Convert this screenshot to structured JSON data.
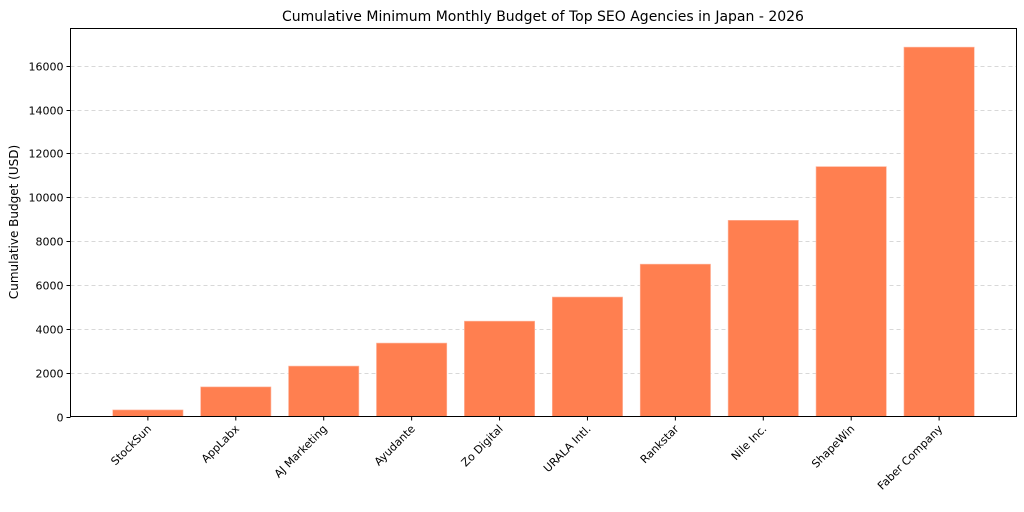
{
  "chart_data": {
    "type": "bar",
    "title": "Cumulative Minimum Monthly Budget of Top SEO Agencies in Japan - 2026",
    "xlabel": "",
    "ylabel": "Cumulative Budget (USD)",
    "categories": [
      "StockSun",
      "AppLabx",
      "AJ Marketing",
      "Ayudante",
      "Zo Digital",
      "URALA Intl.",
      "Rankstar",
      "Nile Inc.",
      "ShapeWin",
      "Faber Company"
    ],
    "values": [
      300,
      1350,
      2300,
      3350,
      4350,
      5450,
      6950,
      8950,
      11400,
      16850
    ],
    "ylim": [
      0,
      17700
    ],
    "yticks": [
      0,
      2000,
      4000,
      6000,
      8000,
      10000,
      12000,
      14000,
      16000
    ],
    "grid": "y, dashed",
    "bar_color": "#FF7F50",
    "legend": "none"
  }
}
